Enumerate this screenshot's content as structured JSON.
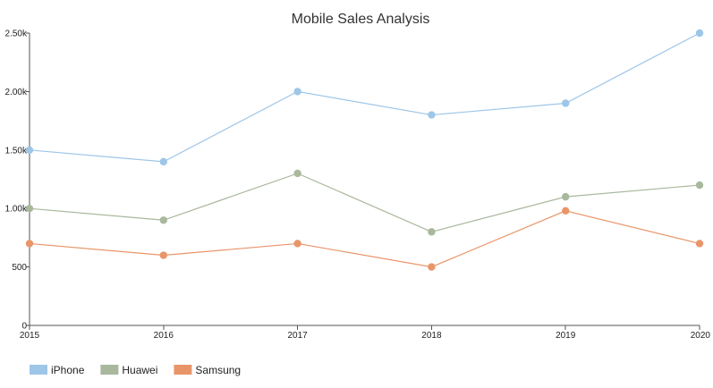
{
  "chart_data": {
    "type": "line",
    "title": "Mobile Sales Analysis",
    "xlabel": "",
    "ylabel": "",
    "x": [
      "2015",
      "2016",
      "2017",
      "2018",
      "2019",
      "2020"
    ],
    "ylim": [
      0,
      2500
    ],
    "y_ticks": [
      0,
      500,
      1000,
      1500,
      2000,
      2500
    ],
    "y_tick_labels": [
      "0",
      "500",
      "1.00k",
      "1.50k",
      "2.00k",
      "2.50k"
    ],
    "grid": false,
    "legend_position": "bottom-left",
    "series": [
      {
        "name": "iPhone",
        "color": "#9ec6e8",
        "values": [
          1500,
          1400,
          2000,
          1800,
          1900,
          2500
        ]
      },
      {
        "name": "Huawei",
        "color": "#a9b89d",
        "values": [
          1000,
          900,
          1300,
          800,
          1100,
          1200
        ]
      },
      {
        "name": "Samsung",
        "color": "#e9956a",
        "values": [
          700,
          600,
          700,
          500,
          980,
          700
        ]
      }
    ]
  }
}
